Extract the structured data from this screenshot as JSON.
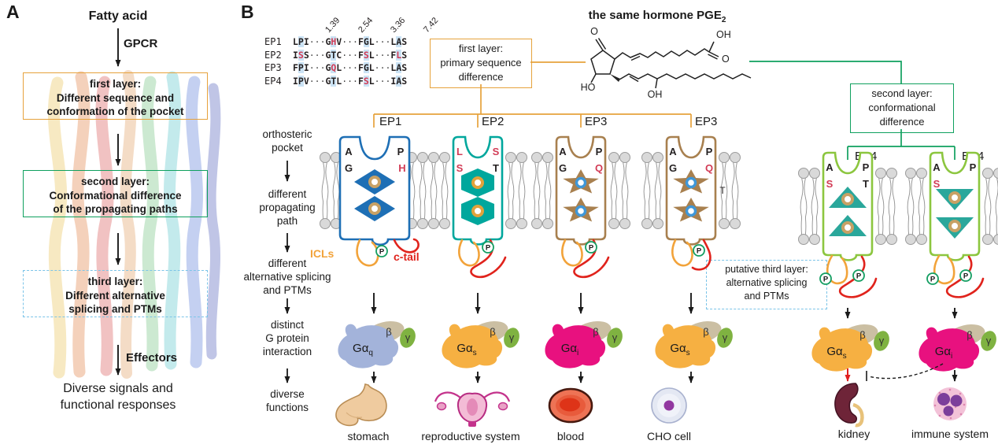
{
  "panelA": {
    "label": "A",
    "top_label": "Fatty acid",
    "arrow_label": "GPCR",
    "boxes": [
      {
        "title": "first layer:",
        "lines": [
          "Different sequence and",
          "conformation of the pocket"
        ]
      },
      {
        "title": "second layer:",
        "lines": [
          "Conformational difference",
          "of the propagating paths"
        ]
      },
      {
        "title": "third layer:",
        "lines": [
          "Different alternative",
          "splicing and PTMs"
        ]
      }
    ],
    "effectors_label": "Effectors",
    "bottom_lines": [
      "Diverse signals and",
      "functional responses"
    ]
  },
  "panelB": {
    "label": "B",
    "alignment": {
      "headers": [
        "1.39",
        "2.54",
        "3.36",
        "7.42"
      ],
      "dots": "···",
      "rows": [
        {
          "name": "EP1",
          "triplets": [
            [
              {
                "c": "L"
              },
              {
                "c": "P",
                "hl": true
              },
              {
                "c": "I"
              }
            ],
            [
              {
                "c": "G"
              },
              {
                "c": "H",
                "hl": true,
                "red": true
              },
              {
                "c": "V"
              }
            ],
            [
              {
                "c": "F"
              },
              {
                "c": "G",
                "hl": true
              },
              {
                "c": "L"
              }
            ],
            [
              {
                "c": "L"
              },
              {
                "c": "A",
                "hl": true
              },
              {
                "c": "S"
              }
            ]
          ]
        },
        {
          "name": "EP2",
          "triplets": [
            [
              {
                "c": "I"
              },
              {
                "c": "S",
                "hl": true,
                "red": true
              },
              {
                "c": "S"
              }
            ],
            [
              {
                "c": "G"
              },
              {
                "c": "T",
                "hl": true
              },
              {
                "c": "C"
              }
            ],
            [
              {
                "c": "F"
              },
              {
                "c": "S",
                "hl": true,
                "red": true
              },
              {
                "c": "L"
              }
            ],
            [
              {
                "c": "F"
              },
              {
                "c": "L",
                "hl": true,
                "red": true
              },
              {
                "c": "S"
              }
            ]
          ]
        },
        {
          "name": "EP3",
          "triplets": [
            [
              {
                "c": "F"
              },
              {
                "c": "P",
                "hl": true
              },
              {
                "c": "I"
              }
            ],
            [
              {
                "c": "G"
              },
              {
                "c": "Q",
                "hl": true,
                "red": true
              },
              {
                "c": "L"
              }
            ],
            [
              {
                "c": "F"
              },
              {
                "c": "G",
                "hl": true
              },
              {
                "c": "L"
              }
            ],
            [
              {
                "c": "L"
              },
              {
                "c": "A",
                "hl": true
              },
              {
                "c": "S"
              }
            ]
          ]
        },
        {
          "name": "EP4",
          "triplets": [
            [
              {
                "c": "I"
              },
              {
                "c": "P",
                "hl": true
              },
              {
                "c": "V"
              }
            ],
            [
              {
                "c": "G"
              },
              {
                "c": "T",
                "hl": true
              },
              {
                "c": "L"
              }
            ],
            [
              {
                "c": "F"
              },
              {
                "c": "S",
                "hl": true,
                "red": true
              },
              {
                "c": "L"
              }
            ],
            [
              {
                "c": "I"
              },
              {
                "c": "A",
                "hl": true
              },
              {
                "c": "S"
              }
            ]
          ]
        }
      ]
    },
    "hormone_title": {
      "text": "the same hormone PGE",
      "sub": "2"
    },
    "molecule": {
      "ketone_o": "O",
      "acid_oh": "OH",
      "acid_o": "O",
      "ring_ho": "HO",
      "chain_oh": "OH"
    },
    "first_layer_box": [
      "first layer:",
      "primary sequence",
      "difference"
    ],
    "second_layer_box": [
      "second layer:",
      "conformational",
      "difference"
    ],
    "third_layer_box": [
      "putative third layer:",
      "alternative splicing",
      "and PTMs"
    ],
    "left_labels": [
      [
        "orthosteric",
        "pocket"
      ],
      [
        "different",
        "propagating",
        "path"
      ],
      [
        "different",
        "alternative splicing",
        "and PTMs"
      ],
      [
        "distinct",
        "G protein",
        "interaction"
      ],
      [
        "diverse",
        "functions"
      ]
    ],
    "icl_label": "ICLs",
    "ctail_label": "c-tail",
    "p_badge": "P",
    "receptors": [
      {
        "name": "EP1",
        "pocket": {
          "tl": "A",
          "bl": "G",
          "tr": "P",
          "br": "H"
        }
      },
      {
        "name": "EP2",
        "pocket": {
          "tl": "L",
          "bl": "S",
          "tr": "S",
          "br": "T"
        }
      },
      {
        "name": "EP3",
        "pocket": {
          "tl": "A",
          "bl": "G",
          "tr": "P",
          "br": "Q"
        }
      },
      {
        "name": "EP3",
        "pocket": {
          "tl": "A",
          "bl": "G",
          "tr": "P",
          "br": "Q"
        },
        "t_mark": "T"
      },
      {
        "name": "EP4",
        "pocket": {
          "tl": "A",
          "bl": "S",
          "tr": "P",
          "br": "T"
        }
      },
      {
        "name": "EP4",
        "pocket": {
          "tl": "A",
          "bl": "S",
          "tr": "P"
        }
      }
    ],
    "g_proteins": [
      {
        "alpha": "Gα",
        "sub": "q"
      },
      {
        "alpha": "Gα",
        "sub": "s"
      },
      {
        "alpha": "Gα",
        "sub": "i"
      },
      {
        "alpha": "Gα",
        "sub": "s"
      },
      {
        "alpha": "Gα",
        "sub": "s"
      },
      {
        "alpha": "Gα",
        "sub": "i"
      }
    ],
    "beta": "β",
    "gamma": "γ",
    "organs": [
      "stomach",
      "reproductive system",
      "blood",
      "CHO cell",
      "kidney",
      "immune system"
    ]
  },
  "colors": {
    "layer1_orange": "#E6A23C",
    "layer2_green": "#0FA05E",
    "layer3_blue_dashed": "#7BC4E8",
    "ep1_blue": "#1E6FB5",
    "ep2_teal": "#00A79D",
    "ep3_tan": "#A8804F",
    "ep4_lime": "#8CC63F",
    "icl_orange": "#F2A33A",
    "ctail_red": "#E0231C",
    "red_residue": "#D23B55",
    "galpha_q": "#A3B3DA",
    "galpha_s": "#F6B042",
    "galpha_i": "#E8117F"
  }
}
